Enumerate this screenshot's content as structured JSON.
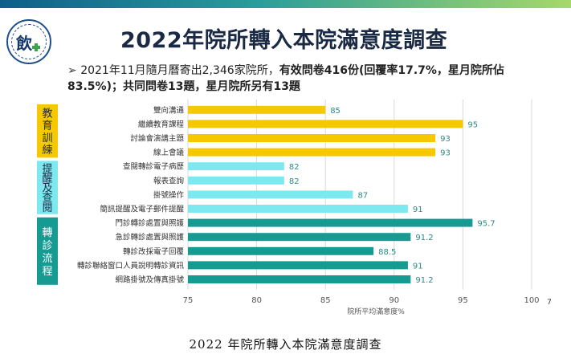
{
  "slide": {
    "title": "2022年院所轉入本院滿意度調查",
    "bullet": {
      "arrow": "➢",
      "part1": "2021年11月隨月曆寄出2,346家院所，",
      "part2": "有效問卷416份(回覆率17.7%，星月院所佔83.5%)；共同問卷13題，星月院所另有13題"
    },
    "logo_text": "飲",
    "page_number": "7"
  },
  "caption": "2022 年院所轉入本院滿意度調查",
  "colors": {
    "education": "#f5c800",
    "reminder": "#7de8f0",
    "referral": "#159b92",
    "value_text": "#2d8a86",
    "axis_text": "#555555",
    "grid": "#d9d9d9"
  },
  "chart_data": {
    "type": "bar",
    "orientation": "horizontal",
    "xlabel": "院所平均滿意度%",
    "xlim": [
      75,
      100
    ],
    "xticks": [
      75,
      80,
      85,
      90,
      95,
      100
    ],
    "grid": true,
    "groups": [
      {
        "label": "教育訓練",
        "color_key": "education"
      },
      {
        "label": "提醒及查閱",
        "color_key": "reminder"
      },
      {
        "label": "轉診流程",
        "color_key": "referral"
      }
    ],
    "categories": [
      "雙向溝通",
      "繼續教育課程",
      "討論會演講主題",
      "線上會議",
      "查閱轉診電子病歷",
      "報表查詢",
      "掛號操作",
      "簡訊提醒及電子郵件提醒",
      "門診轉診處置與照護",
      "急診轉診處置與照護",
      "轉診改採電子回覆",
      "轉診聯絡窗口人員說明轉診資訊",
      "網路掛號及傳真掛號"
    ],
    "values": [
      85,
      95,
      93,
      93,
      82,
      82,
      87,
      91,
      95.7,
      91.2,
      88.5,
      91,
      91.2
    ],
    "value_labels": [
      "85",
      "95",
      "93",
      "93",
      "82",
      "82",
      "87",
      "91",
      "95.7",
      "91.2",
      "88.5",
      "91",
      "91.2"
    ],
    "group_index": [
      0,
      0,
      0,
      0,
      1,
      1,
      1,
      1,
      2,
      2,
      2,
      2,
      2
    ]
  }
}
